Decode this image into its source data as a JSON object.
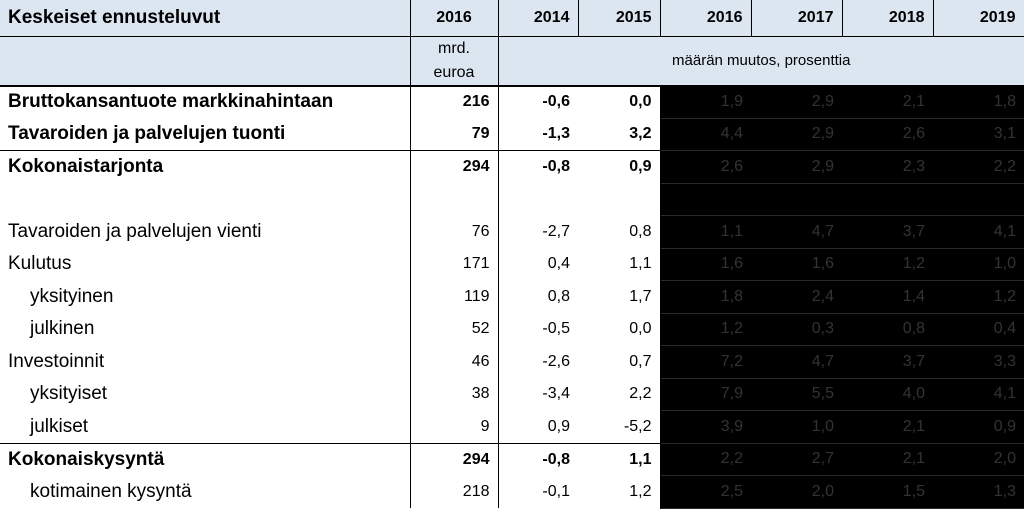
{
  "header": {
    "title": "Keskeiset ennusteluvut",
    "level_year": "2016",
    "years": [
      "2014",
      "2015",
      "2016",
      "2017",
      "2018",
      "2019"
    ],
    "unit_line1": "mrd.",
    "unit_line2": "euroa",
    "change_label": "määrän muutos, prosenttia"
  },
  "rows": [
    {
      "label": "Bruttokansantuote markkinahintaan",
      "level": "216",
      "v2014": "-0,6",
      "v2015": "0,0",
      "f": [
        "1,9",
        "2,9",
        "2,1",
        "1,8"
      ]
    },
    {
      "label": "Tavaroiden ja palvelujen tuonti",
      "level": "79",
      "v2014": "-1,3",
      "v2015": "3,2",
      "f": [
        "4,4",
        "2,9",
        "2,6",
        "3,1"
      ]
    },
    {
      "label": "Kokonaistarjonta",
      "level": "294",
      "v2014": "-0,8",
      "v2015": "0,9",
      "f": [
        "2,6",
        "2,9",
        "2,3",
        "2,2"
      ]
    },
    {
      "label": "",
      "level": "",
      "v2014": "",
      "v2015": "",
      "f": [
        "",
        "",
        "",
        ""
      ]
    },
    {
      "label": "Tavaroiden ja palvelujen vienti",
      "level": "76",
      "v2014": "-2,7",
      "v2015": "0,8",
      "f": [
        "1,1",
        "4,7",
        "3,7",
        "4,1"
      ]
    },
    {
      "label": "Kulutus",
      "level": "171",
      "v2014": "0,4",
      "v2015": "1,1",
      "f": [
        "1,6",
        "1,6",
        "1,2",
        "1,0"
      ]
    },
    {
      "label": "yksityinen",
      "level": "119",
      "v2014": "0,8",
      "v2015": "1,7",
      "f": [
        "1,8",
        "2,4",
        "1,4",
        "1,2"
      ]
    },
    {
      "label": "julkinen",
      "level": "52",
      "v2014": "-0,5",
      "v2015": "0,0",
      "f": [
        "1,2",
        "0,3",
        "0,8",
        "0,4"
      ]
    },
    {
      "label": "Investoinnit",
      "level": "46",
      "v2014": "-2,6",
      "v2015": "0,7",
      "f": [
        "7,2",
        "4,7",
        "3,7",
        "3,3"
      ]
    },
    {
      "label": "yksityiset",
      "level": "38",
      "v2014": "-3,4",
      "v2015": "2,2",
      "f": [
        "7,9",
        "5,5",
        "4,0",
        "4,1"
      ]
    },
    {
      "label": "julkiset",
      "level": "9",
      "v2014": "0,9",
      "v2015": "-5,2",
      "f": [
        "3,9",
        "1,0",
        "2,1",
        "0,9"
      ]
    },
    {
      "label": "Kokonaiskysyntä",
      "level": "294",
      "v2014": "-0,8",
      "v2015": "1,1",
      "f": [
        "2,2",
        "2,7",
        "2,1",
        "2,0"
      ]
    },
    {
      "label": "kotimainen kysyntä",
      "level": "218",
      "v2014": "-0,1",
      "v2015": "1,2",
      "f": [
        "2,5",
        "2,0",
        "1,5",
        "1,3"
      ]
    }
  ]
}
